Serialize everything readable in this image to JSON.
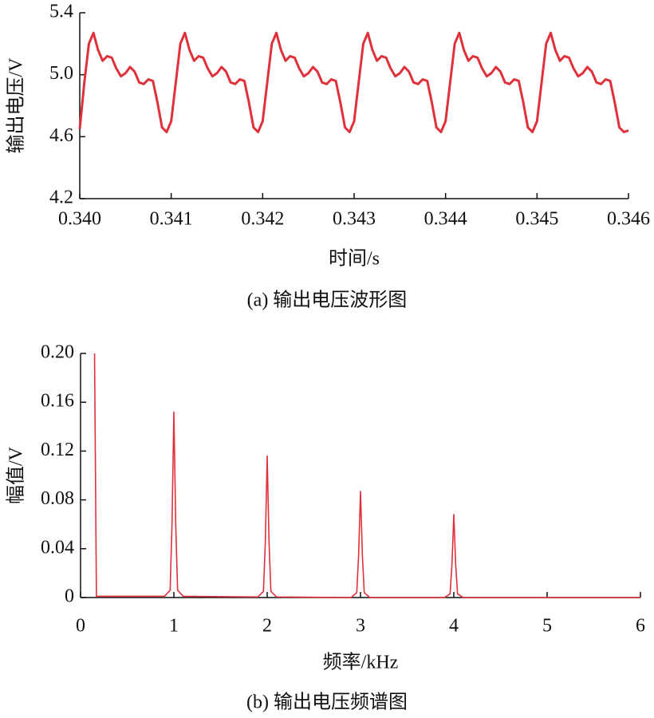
{
  "chart_data": [
    {
      "type": "line",
      "title": "(a) 输出电压波形图",
      "x_label": "时间/s",
      "y_label": "输出电压/V",
      "color": "#e0303a",
      "xlim": [
        0.34,
        0.346
      ],
      "xticks": [
        {
          "value": 0.34,
          "label": "0.340"
        },
        {
          "value": 0.341,
          "label": "0.341"
        },
        {
          "value": 0.342,
          "label": "0.342"
        },
        {
          "value": 0.343,
          "label": "0.343"
        },
        {
          "value": 0.344,
          "label": "0.344"
        },
        {
          "value": 0.345,
          "label": "0.345"
        },
        {
          "value": 0.346,
          "label": "0.346"
        }
      ],
      "ylim": [
        4.2,
        5.4
      ],
      "yticks": [
        4.2,
        4.6,
        {
          "value": 5.0,
          "label": "5.0"
        },
        5.4
      ],
      "x": [
        0.34,
        0.34005,
        0.3401,
        0.34015,
        0.3402,
        0.34025,
        0.3403,
        0.34035,
        0.3404,
        0.34045,
        0.3405,
        0.34055,
        0.3406,
        0.34065,
        0.3407,
        0.34075,
        0.3408,
        0.34085,
        0.3409,
        0.34095,
        0.341,
        0.34105,
        0.3411,
        0.34115,
        0.3412,
        0.34125,
        0.3413,
        0.34135,
        0.3414,
        0.34145,
        0.3415,
        0.34155,
        0.3416,
        0.34165,
        0.3417,
        0.34175,
        0.3418,
        0.34185,
        0.3419,
        0.34195,
        0.342,
        0.34205,
        0.3421,
        0.34215,
        0.3422,
        0.34225,
        0.3423,
        0.34235,
        0.3424,
        0.34245,
        0.3425,
        0.34255,
        0.3426,
        0.34265,
        0.3427,
        0.34275,
        0.3428,
        0.34285,
        0.3429,
        0.34295,
        0.343,
        0.34305,
        0.3431,
        0.34315,
        0.3432,
        0.34325,
        0.3433,
        0.34335,
        0.3434,
        0.34345,
        0.3435,
        0.34355,
        0.3436,
        0.34365,
        0.3437,
        0.34375,
        0.3438,
        0.34385,
        0.3439,
        0.34395,
        0.344,
        0.34405,
        0.3441,
        0.34415,
        0.3442,
        0.34425,
        0.3443,
        0.34435,
        0.3444,
        0.34445,
        0.3445,
        0.34455,
        0.3446,
        0.34465,
        0.3447,
        0.34475,
        0.3448,
        0.34485,
        0.3449,
        0.34495,
        0.345,
        0.34505,
        0.3451,
        0.34515,
        0.3452,
        0.34525,
        0.3453,
        0.34535,
        0.3454,
        0.34545,
        0.3455,
        0.34555,
        0.3456,
        0.34565,
        0.3457,
        0.34575,
        0.3458,
        0.34585,
        0.3459,
        0.34595,
        0.346
      ],
      "values": [
        4.65,
        4.95,
        5.2,
        5.27,
        5.16,
        5.09,
        5.12,
        5.11,
        5.04,
        4.99,
        5.01,
        5.05,
        5.02,
        4.95,
        4.94,
        4.97,
        4.96,
        4.82,
        4.66,
        4.63,
        4.7,
        4.95,
        5.2,
        5.27,
        5.16,
        5.09,
        5.12,
        5.11,
        5.04,
        4.99,
        5.01,
        5.05,
        5.02,
        4.95,
        4.94,
        4.97,
        4.96,
        4.82,
        4.66,
        4.63,
        4.7,
        4.95,
        5.2,
        5.27,
        5.16,
        5.09,
        5.12,
        5.11,
        5.04,
        4.99,
        5.01,
        5.05,
        5.02,
        4.95,
        4.94,
        4.97,
        4.96,
        4.82,
        4.66,
        4.63,
        4.7,
        4.95,
        5.2,
        5.27,
        5.16,
        5.09,
        5.12,
        5.11,
        5.04,
        4.99,
        5.01,
        5.05,
        5.02,
        4.95,
        4.94,
        4.97,
        4.96,
        4.82,
        4.66,
        4.63,
        4.7,
        4.95,
        5.2,
        5.27,
        5.16,
        5.09,
        5.12,
        5.11,
        5.04,
        4.99,
        5.01,
        5.05,
        5.02,
        4.95,
        4.94,
        4.97,
        4.96,
        4.82,
        4.66,
        4.63,
        4.7,
        4.95,
        5.2,
        5.27,
        5.16,
        5.09,
        5.12,
        5.11,
        5.04,
        4.99,
        5.01,
        5.05,
        5.02,
        4.95,
        4.94,
        4.97,
        4.96,
        4.82,
        4.66,
        4.63,
        4.64
      ]
    },
    {
      "type": "line",
      "title": "(b) 输出电压频谱图",
      "x_label": "频率/kHz",
      "y_label": "幅值/V",
      "color": "#e0303a",
      "xlim": [
        0,
        6
      ],
      "xticks": [
        0,
        1,
        2,
        3,
        4,
        5,
        6
      ],
      "ylim": [
        0,
        0.2
      ],
      "yticks": [
        0,
        0.04,
        0.08,
        0.12,
        0.16,
        {
          "value": 0.2,
          "label": "0.20"
        }
      ],
      "x": [
        0.15,
        0.17,
        0.9,
        0.96,
        0.98,
        1.0,
        1.02,
        1.04,
        1.1,
        1.9,
        1.96,
        1.98,
        2.0,
        2.02,
        2.04,
        2.1,
        2.9,
        2.96,
        2.98,
        3.0,
        3.02,
        3.04,
        3.1,
        3.9,
        3.96,
        3.98,
        4.0,
        4.02,
        4.04,
        4.1,
        6.0
      ],
      "values": [
        0.2,
        0.001,
        0.001,
        0.006,
        0.06,
        0.152,
        0.06,
        0.006,
        0.001,
        0.0005,
        0.005,
        0.045,
        0.116,
        0.045,
        0.005,
        0.0005,
        0,
        0.004,
        0.035,
        0.087,
        0.035,
        0.004,
        0,
        0,
        0.003,
        0.027,
        0.068,
        0.027,
        0.003,
        0,
        0
      ]
    }
  ]
}
